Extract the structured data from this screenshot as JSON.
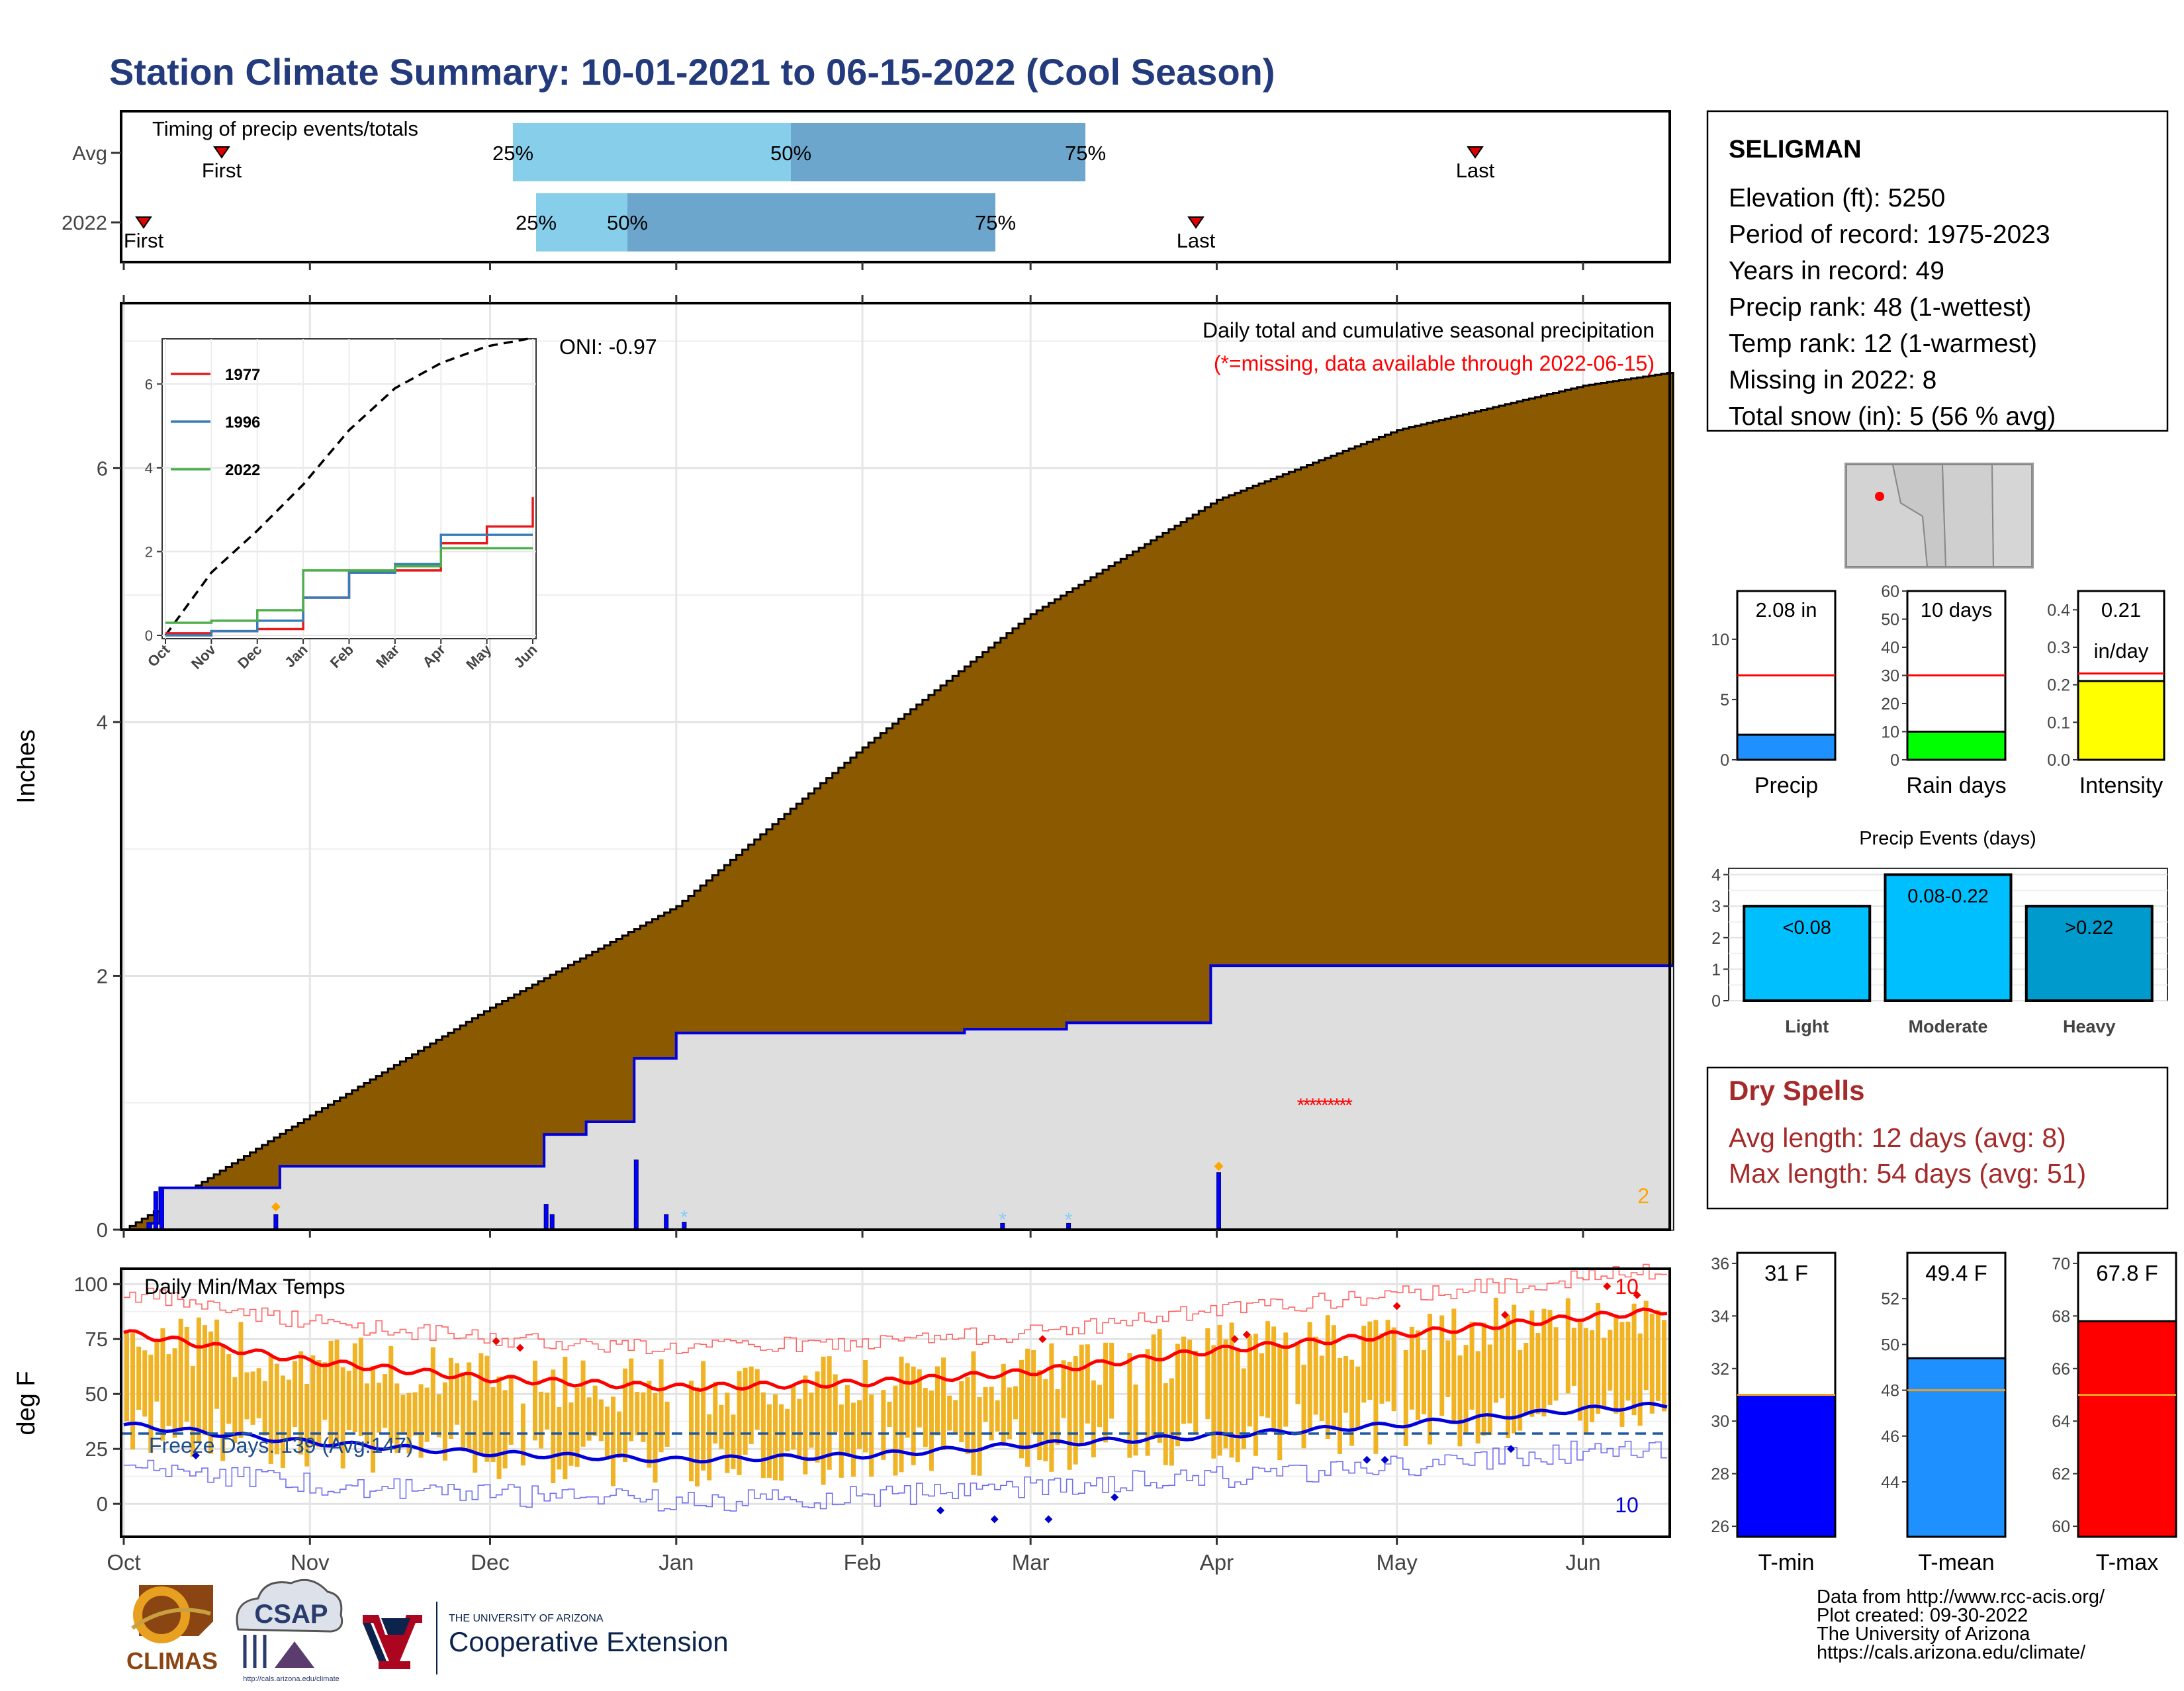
{
  "title": "Station Climate Summary: 10-01-2021 to 06-15-2022 (Cool Season)",
  "timing": {
    "label": "Timing of precip events/totals",
    "rows": [
      "Avg",
      "2022"
    ],
    "first_label": "First",
    "last_label": "Last",
    "p25": "25%",
    "p50": "50%",
    "p75": "75%"
  },
  "main": {
    "y_label": "Inches",
    "oni": "ONI: -0.97",
    "caption": "Daily total and cumulative seasonal precipitation",
    "missing_note": "(*=missing, data available through 2022-06-15)",
    "count_label": "2"
  },
  "temps": {
    "title": "Daily Min/Max Temps",
    "y_label": "deg F",
    "freeze": "Freeze Days: 139 (Avg:147)",
    "top_count": "10",
    "bottom_count": "10"
  },
  "months": [
    "Oct",
    "Nov",
    "Dec",
    "Jan",
    "Feb",
    "Mar",
    "Apr",
    "May",
    "Jun"
  ],
  "inset": {
    "months": [
      "Oct",
      "Nov",
      "Dec",
      "Jan",
      "Feb",
      "Mar",
      "Apr",
      "May",
      "Jun"
    ],
    "legend": [
      {
        "name": "1977",
        "color": "#e41a1c"
      },
      {
        "name": "1996",
        "color": "#377eb8"
      },
      {
        "name": "2022",
        "color": "#4daf4a"
      }
    ]
  },
  "station": {
    "name": "SELIGMAN",
    "lines": [
      "Elevation (ft): 5250",
      "Period of record: 1975-2023",
      "Years in record: 49",
      "Precip rank: 48 (1-wettest)",
      "Temp rank: 12 (1-warmest)",
      "Missing in 2022: 8",
      "Total snow (in): 5 (56 % avg)"
    ]
  },
  "mini_bars": [
    {
      "label": "Precip",
      "value_text": "2.08 in",
      "value": 2.08,
      "avg": 7.0,
      "ylim": [
        0,
        14
      ],
      "ticks": [
        0,
        5,
        10
      ],
      "color": "#1e90ff"
    },
    {
      "label": "Rain days",
      "value_text": "10 days",
      "value": 10,
      "avg": 30,
      "ylim": [
        0,
        60
      ],
      "ticks": [
        0,
        10,
        20,
        30,
        40,
        50,
        60
      ],
      "color": "#00ff00"
    },
    {
      "label": "Intensity",
      "value_text": "0.21",
      "value_text2": "in/day",
      "value": 0.21,
      "avg": 0.23,
      "ylim": [
        0,
        0.45
      ],
      "ticks": [
        "0.0",
        "0.1",
        "0.2",
        "0.3",
        "0.4"
      ],
      "color": "#ffff00"
    }
  ],
  "events": {
    "title": "Precip Events (days)",
    "categories": [
      "Light",
      "Moderate",
      "Heavy"
    ],
    "values": [
      3,
      4,
      3
    ],
    "bar_labels": [
      "<0.08",
      "0.08-0.22",
      ">0.22"
    ],
    "colors": [
      "#00bfff",
      "#00bfff",
      "#009acd"
    ],
    "ticks": [
      0,
      1,
      2,
      3,
      4
    ]
  },
  "dry_spells": {
    "title": "Dry Spells",
    "avg_line": "Avg length: 12 days (avg: 8)",
    "max_line": "Max length: 54 days (avg: 51)"
  },
  "temp_bars": [
    {
      "label": "T-min",
      "value_text": "31 F",
      "value": 31,
      "avg": 31.0,
      "ylim": [
        25.6,
        36.4
      ],
      "ticks": [
        26,
        28,
        30,
        32,
        34,
        36
      ],
      "color": "#0000ff"
    },
    {
      "label": "T-mean",
      "value_text": "49.4 F",
      "value": 49.4,
      "avg": 48.0,
      "ylim": [
        41.6,
        54.0
      ],
      "ticks": [
        44,
        46,
        48,
        50,
        52
      ],
      "color": "#1e90ff"
    },
    {
      "label": "T-max",
      "value_text": "67.8 F",
      "value": 67.8,
      "avg": 65.0,
      "ylim": [
        59.6,
        70.4
      ],
      "ticks": [
        60,
        62,
        64,
        66,
        68,
        70
      ],
      "color": "#ff0000"
    }
  ],
  "footer": {
    "lines": [
      "Data from http://www.rcc-acis.org/",
      "Plot created: 09-30-2022",
      "The University of Arizona",
      "https://cals.arizona.edu/climate/"
    ],
    "climas": "CLIMAS",
    "csap": "CSAP",
    "csap_url": "http://cals.arizona.edu/climate",
    "ua_small": "THE UNIVERSITY OF ARIZONA",
    "ua_big": "Cooperative Extension"
  },
  "chart_data": [
    {
      "type": "area",
      "title": "Daily total and cumulative seasonal precipitation",
      "ylabel": "Inches",
      "ylim": [
        0,
        7.3
      ],
      "x": [
        "Oct 1",
        "Nov 1",
        "Dec 1",
        "Jan 1",
        "Feb 1",
        "Mar 1",
        "Apr 1",
        "May 1",
        "Jun 1",
        "Jun 15"
      ],
      "series": [
        {
          "name": "Average cumulative",
          "values": [
            0.0,
            0.9,
            1.75,
            2.55,
            3.8,
            4.85,
            5.75,
            6.3,
            6.65,
            6.75
          ]
        },
        {
          "name": "2022 cumulative",
          "values": [
            0.0,
            0.5,
            0.5,
            1.55,
            1.55,
            1.6,
            2.08,
            2.08,
            2.08,
            2.08
          ]
        }
      ]
    },
    {
      "type": "line",
      "title": "Daily Min/Max Temps",
      "ylabel": "deg F",
      "ylim": [
        -15,
        107
      ],
      "x": [
        "Oct 1",
        "Nov 1",
        "Dec 1",
        "Jan 1",
        "Feb 1",
        "Mar 1",
        "Apr 1",
        "May 1",
        "Jun 1",
        "Jun 15"
      ],
      "series": [
        {
          "name": "Avg max",
          "values": [
            78,
            65,
            57,
            53,
            55,
            60,
            70,
            77,
            85,
            88
          ]
        },
        {
          "name": "Avg min",
          "values": [
            36,
            28,
            23,
            20,
            22,
            27,
            31,
            36,
            43,
            45
          ]
        }
      ]
    },
    {
      "type": "line",
      "ylim": [
        0,
        7
      ],
      "x": [
        "Oct",
        "Nov",
        "Dec",
        "Jan",
        "Feb",
        "Mar",
        "Apr",
        "May",
        "Jun"
      ],
      "series": [
        {
          "name": "1977",
          "values": [
            0.05,
            0.1,
            0.15,
            0.9,
            1.5,
            1.55,
            2.2,
            2.6,
            3.3
          ]
        },
        {
          "name": "1996",
          "values": [
            0.0,
            0.1,
            0.35,
            0.9,
            1.5,
            1.7,
            2.4,
            2.4,
            2.4
          ]
        },
        {
          "name": "2022",
          "values": [
            0.3,
            0.35,
            0.6,
            1.55,
            1.55,
            1.65,
            2.08,
            2.08,
            2.08
          ]
        }
      ]
    }
  ]
}
